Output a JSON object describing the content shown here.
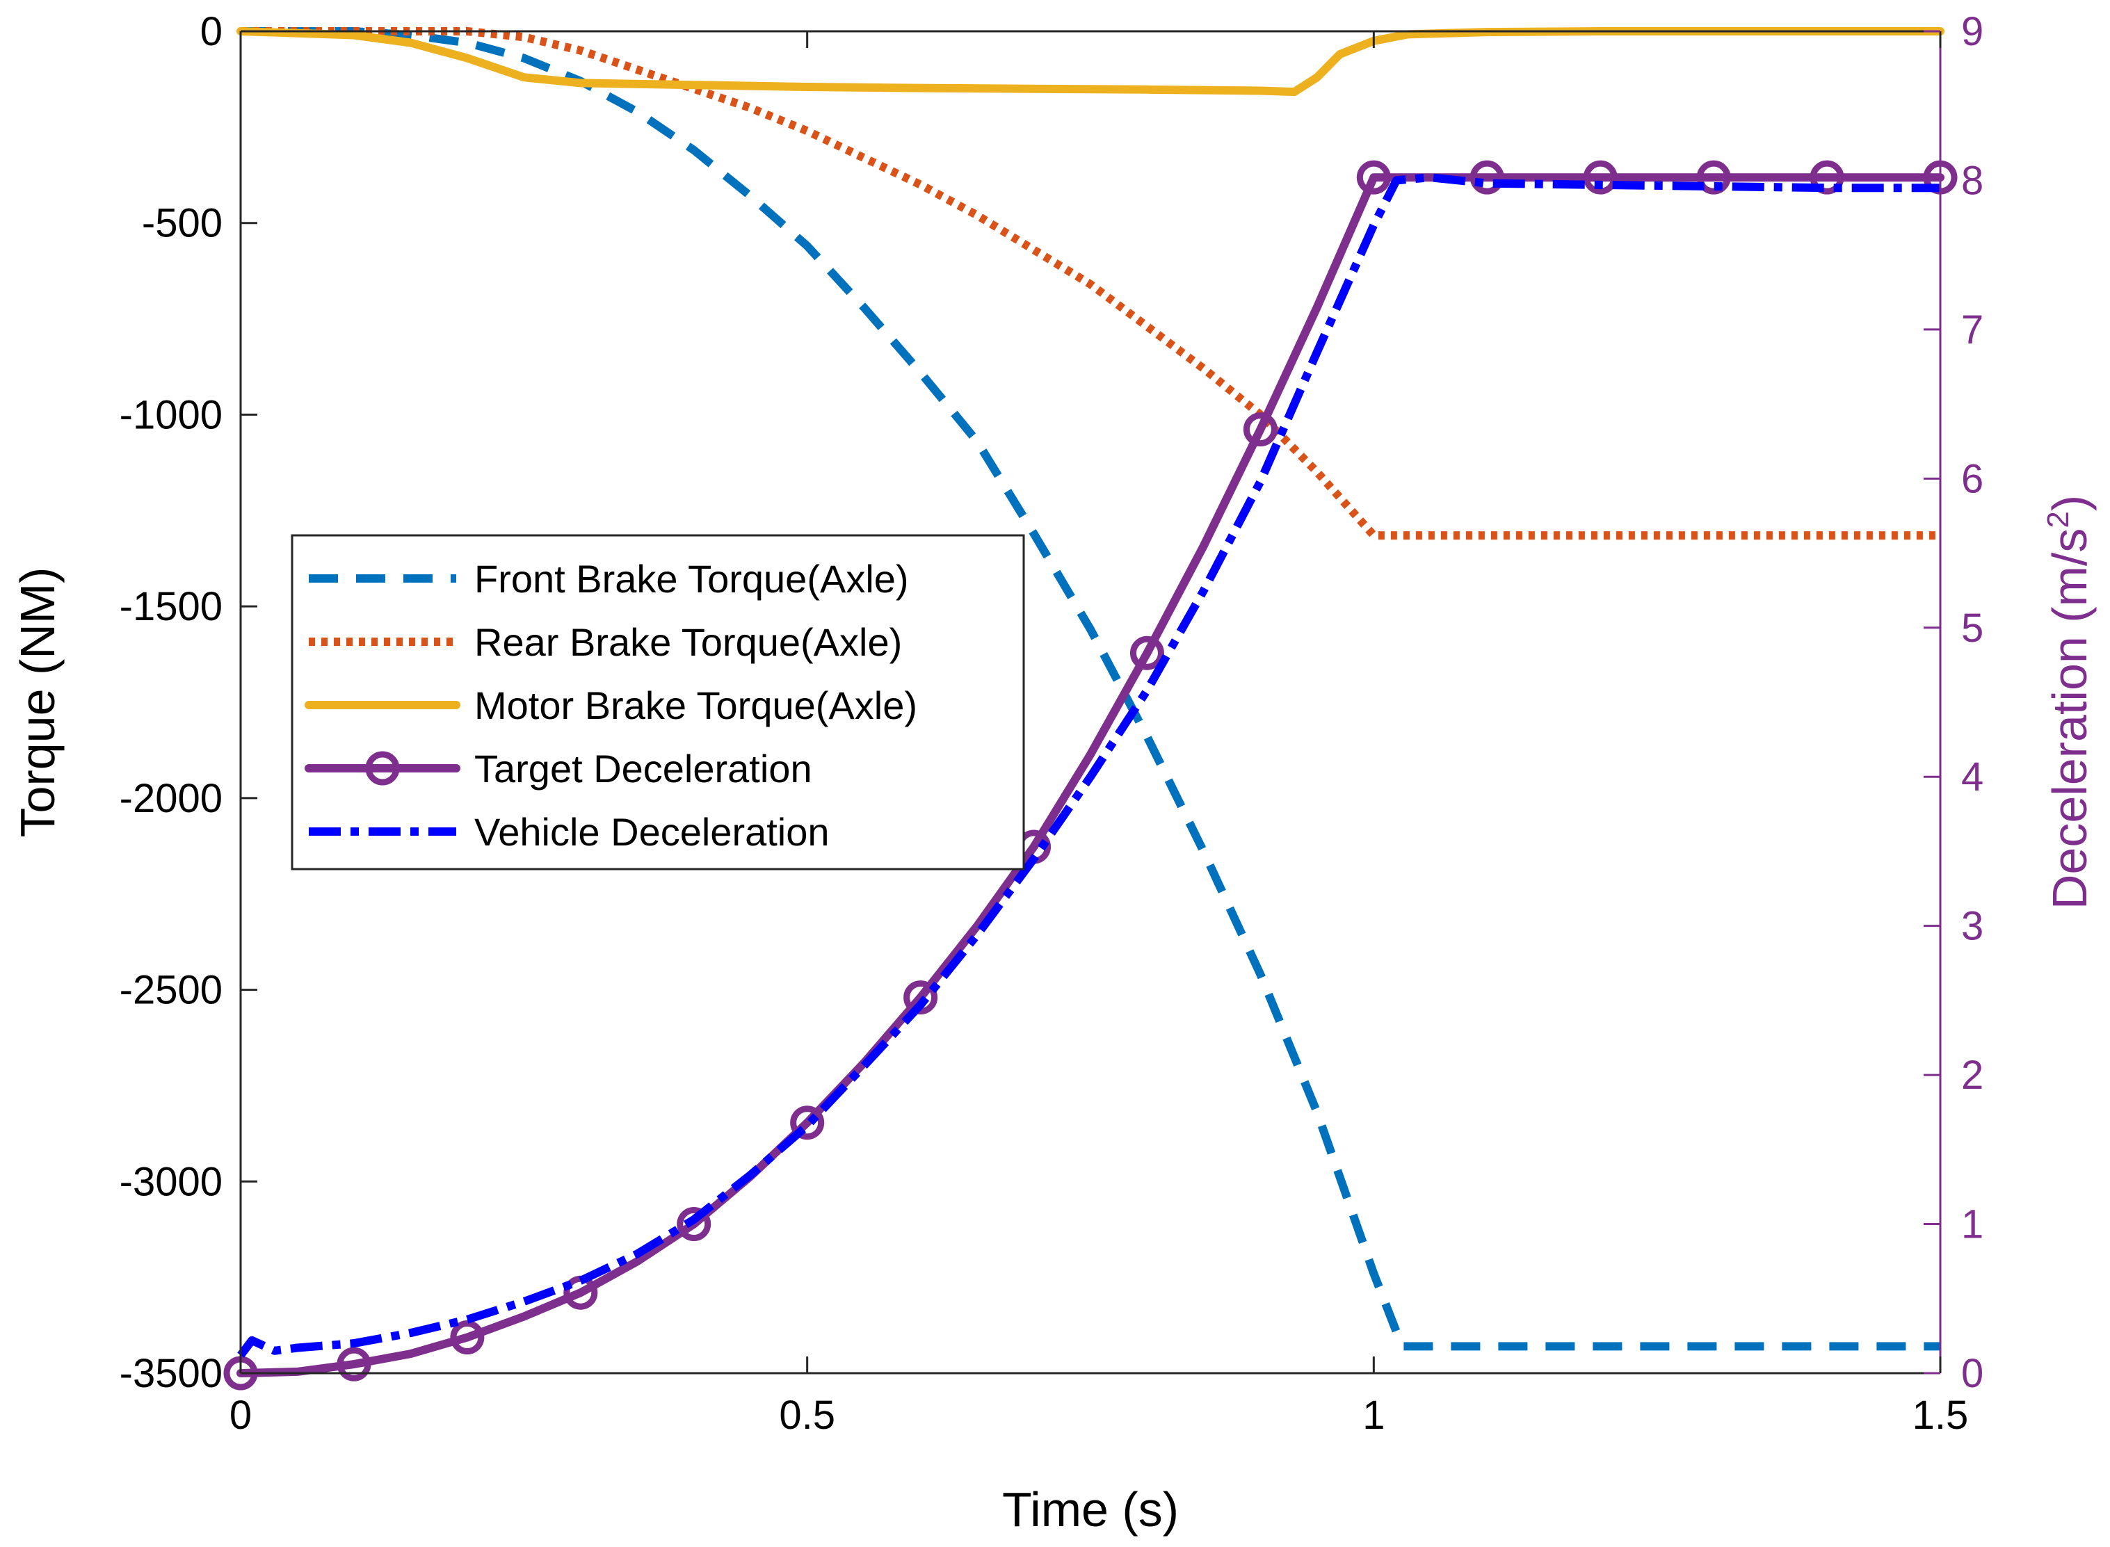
{
  "chart_data": {
    "type": "line",
    "title": "",
    "xlabel": "Time (s)",
    "ylabel_left": "Torque (NM)",
    "ylabel_right": "Deceleration (m/s",
    "ylabel_right_sup": "2",
    "ylabel_right_close": ")",
    "xlim": [
      0,
      1.5
    ],
    "ylim_left": [
      -3500,
      0
    ],
    "ylim_right": [
      0,
      9
    ],
    "x_ticks": [
      "0",
      "0.5",
      "1",
      "1.5"
    ],
    "y_left_ticks": [
      "0",
      "-500",
      "-1000",
      "-1500",
      "-2000",
      "-2500",
      "-3000",
      "-3500"
    ],
    "y_right_ticks": [
      "0",
      "1",
      "2",
      "3",
      "4",
      "5",
      "6",
      "7",
      "8",
      "9"
    ],
    "grid": false,
    "legend_position": "center-left",
    "colors": {
      "front": "#0072BD",
      "rear": "#D95319",
      "motor": "#EDB120",
      "target": "#7E2F8E",
      "vehicle": "#0000FF",
      "right_axis": "#7E2F8E"
    },
    "series": [
      {
        "name": "Front Brake Torque(Axle)",
        "axis": "left",
        "style": "dashed",
        "x": [
          0,
          0.1,
          0.15,
          0.2,
          0.25,
          0.3,
          0.35,
          0.4,
          0.45,
          0.5,
          0.55,
          0.6,
          0.65,
          0.7,
          0.75,
          0.8,
          0.85,
          0.9,
          0.95,
          1.0,
          1.025,
          1.05,
          1.1,
          1.2,
          1.3,
          1.4,
          1.5
        ],
        "y": [
          0,
          0,
          -10,
          -30,
          -70,
          -130,
          -210,
          -310,
          -430,
          -560,
          -720,
          -890,
          -1070,
          -1310,
          -1560,
          -1840,
          -2140,
          -2460,
          -2820,
          -3240,
          -3430,
          -3430,
          -3430,
          -3430,
          -3430,
          -3430,
          -3430
        ]
      },
      {
        "name": "Rear Brake Torque(Axle)",
        "axis": "left",
        "style": "dotted",
        "x": [
          0,
          0.1,
          0.15,
          0.2,
          0.25,
          0.3,
          0.35,
          0.4,
          0.45,
          0.5,
          0.55,
          0.6,
          0.65,
          0.7,
          0.75,
          0.8,
          0.85,
          0.9,
          0.95,
          1.0,
          1.05,
          1.1,
          1.2,
          1.3,
          1.4,
          1.5
        ],
        "y": [
          0,
          0,
          0,
          0,
          -15,
          -50,
          -100,
          -150,
          -200,
          -260,
          -330,
          -400,
          -480,
          -570,
          -660,
          -770,
          -880,
          -1000,
          -1150,
          -1315,
          -1315,
          -1315,
          -1315,
          -1315,
          -1315,
          -1315
        ]
      },
      {
        "name": "Motor Brake Torque(Axle)",
        "axis": "left",
        "style": "solid",
        "x": [
          0,
          0.1,
          0.15,
          0.2,
          0.25,
          0.3,
          0.4,
          0.5,
          0.6,
          0.7,
          0.8,
          0.9,
          0.93,
          0.95,
          0.97,
          1.0,
          1.03,
          1.1,
          1.2,
          1.3,
          1.4,
          1.5
        ],
        "y": [
          0,
          -10,
          -30,
          -70,
          -120,
          -135,
          -140,
          -145,
          -148,
          -150,
          -152,
          -155,
          -158,
          -120,
          -60,
          -25,
          -8,
          -2,
          0,
          0,
          0,
          0
        ]
      },
      {
        "name": "Target Deceleration",
        "axis": "right",
        "style": "solid-circles",
        "x": [
          0,
          0.05,
          0.1,
          0.15,
          0.2,
          0.25,
          0.3,
          0.35,
          0.4,
          0.45,
          0.5,
          0.55,
          0.6,
          0.65,
          0.7,
          0.75,
          0.8,
          0.85,
          0.9,
          0.95,
          1.0,
          1.05,
          1.1,
          1.2,
          1.3,
          1.4,
          1.5
        ],
        "y": [
          0,
          0.01,
          0.06,
          0.13,
          0.24,
          0.38,
          0.54,
          0.75,
          1.0,
          1.32,
          1.68,
          2.08,
          2.52,
          3.0,
          3.53,
          4.15,
          4.83,
          5.55,
          6.33,
          7.15,
          8.02,
          8.02,
          8.02,
          8.02,
          8.02,
          8.02,
          8.02
        ],
        "marker_x": [
          0,
          0.1,
          0.2,
          0.3,
          0.4,
          0.5,
          0.6,
          0.7,
          0.8,
          0.9,
          1.0,
          1.1,
          1.2,
          1.3,
          1.4,
          1.5
        ],
        "marker_y": [
          0,
          0.06,
          0.24,
          0.54,
          1.0,
          1.68,
          2.52,
          3.53,
          4.83,
          6.33,
          8.02,
          8.02,
          8.02,
          8.02,
          8.02,
          8.02
        ]
      },
      {
        "name": "Vehicle Deceleration",
        "axis": "right",
        "style": "dashdot",
        "x": [
          0,
          0.01,
          0.03,
          0.05,
          0.1,
          0.15,
          0.2,
          0.25,
          0.3,
          0.35,
          0.4,
          0.45,
          0.5,
          0.55,
          0.6,
          0.65,
          0.7,
          0.75,
          0.8,
          0.85,
          0.9,
          0.95,
          1.0,
          1.02,
          1.05,
          1.1,
          1.2,
          1.3,
          1.4,
          1.5
        ],
        "y": [
          0.12,
          0.22,
          0.15,
          0.17,
          0.2,
          0.27,
          0.36,
          0.48,
          0.62,
          0.8,
          1.03,
          1.33,
          1.66,
          2.06,
          2.47,
          2.94,
          3.45,
          4.0,
          4.58,
          5.25,
          5.98,
          6.85,
          7.7,
          8.0,
          8.02,
          7.98,
          7.97,
          7.96,
          7.95,
          7.95
        ]
      }
    ]
  }
}
